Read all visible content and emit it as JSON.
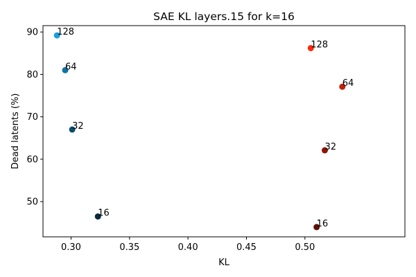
{
  "chart_data": {
    "type": "scatter",
    "title": "SAE KL layers.15 for k=16",
    "xlabel": "KL",
    "ylabel": "Dead latents (%)",
    "xlim": [
      0.276,
      0.5855
    ],
    "ylim": [
      41.7,
      91.5
    ],
    "x_ticks": [
      {
        "value": 0.3,
        "label": "0.30"
      },
      {
        "value": 0.35,
        "label": "0.35"
      },
      {
        "value": 0.4,
        "label": "0.40"
      },
      {
        "value": 0.45,
        "label": "0.45"
      },
      {
        "value": 0.5,
        "label": "0.50"
      }
    ],
    "y_ticks": [
      {
        "value": 50,
        "label": "50"
      },
      {
        "value": 60,
        "label": "60"
      },
      {
        "value": 70,
        "label": "70"
      },
      {
        "value": 80,
        "label": "80"
      },
      {
        "value": 90,
        "label": "90"
      }
    ],
    "grid": false,
    "points": [
      {
        "x": 0.288,
        "y": 89.2,
        "label": "128",
        "color": "#1a9ee0"
      },
      {
        "x": 0.295,
        "y": 81.0,
        "label": "64",
        "color": "#0e74a8"
      },
      {
        "x": 0.301,
        "y": 67.0,
        "label": "32",
        "color": "#0b4d70"
      },
      {
        "x": 0.323,
        "y": 46.5,
        "label": "16",
        "color": "#0a2b3d"
      },
      {
        "x": 0.505,
        "y": 86.2,
        "label": "128",
        "color": "#ff2a0a"
      },
      {
        "x": 0.532,
        "y": 77.1,
        "label": "64",
        "color": "#c42006"
      },
      {
        "x": 0.517,
        "y": 62.1,
        "label": "32",
        "color": "#8c1504"
      },
      {
        "x": 0.51,
        "y": 44.0,
        "label": "16",
        "color": "#5e1003"
      }
    ]
  }
}
